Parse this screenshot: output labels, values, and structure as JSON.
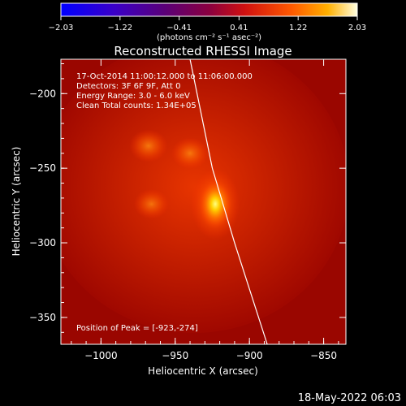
{
  "colorbar": {
    "ticks": [
      "-2.03",
      "-1.22",
      "-0.41",
      "0.41",
      "1.22",
      "2.03"
    ],
    "unit_label": "(photons cm⁻² s⁻¹ asec⁻²)",
    "range": [
      -2.03,
      2.03
    ]
  },
  "chart_data": {
    "type": "heatmap",
    "title": "Reconstructed RHESSI Image",
    "xlabel": "Heliocentric X (arcsec)",
    "ylabel": "Heliocentric Y (arcsec)",
    "xlim": [
      -1027,
      -835
    ],
    "ylim": [
      -368,
      -177
    ],
    "xticks": [
      {
        "value": -1000,
        "label": "−1000"
      },
      {
        "value": -950,
        "label": "−950"
      },
      {
        "value": -900,
        "label": "−900"
      },
      {
        "value": -850,
        "label": "−850"
      }
    ],
    "yticks": [
      {
        "value": -200,
        "label": "−200"
      },
      {
        "value": -250,
        "label": "−250"
      },
      {
        "value": -300,
        "label": "−300"
      },
      {
        "value": -350,
        "label": "−350"
      }
    ],
    "sources": [
      {
        "x": -923,
        "y": -274,
        "level": 1.0
      },
      {
        "x": -968,
        "y": -235,
        "level": 0.55
      },
      {
        "x": -940,
        "y": -240,
        "level": 0.5
      },
      {
        "x": -966,
        "y": -274,
        "level": 0.4
      }
    ],
    "limb_curve": [
      [
        -940,
        -177
      ],
      [
        -925,
        -250
      ],
      [
        -910,
        -300
      ],
      [
        -888,
        -368
      ]
    ],
    "annotations": [
      "17-Oct-2014 11:00:12.000 to 11:06:00.000",
      "Detectors: 3F 6F 9F, Att 0",
      "Energy Range: 3.0 - 6.0 keV",
      "Clean     Total counts: 1.34E+05"
    ],
    "peak_label": "Position of Peak = [-923,-274]",
    "peak": [
      -923,
      -274
    ]
  },
  "footer": {
    "timestamp": "18-May-2022 06:03"
  }
}
